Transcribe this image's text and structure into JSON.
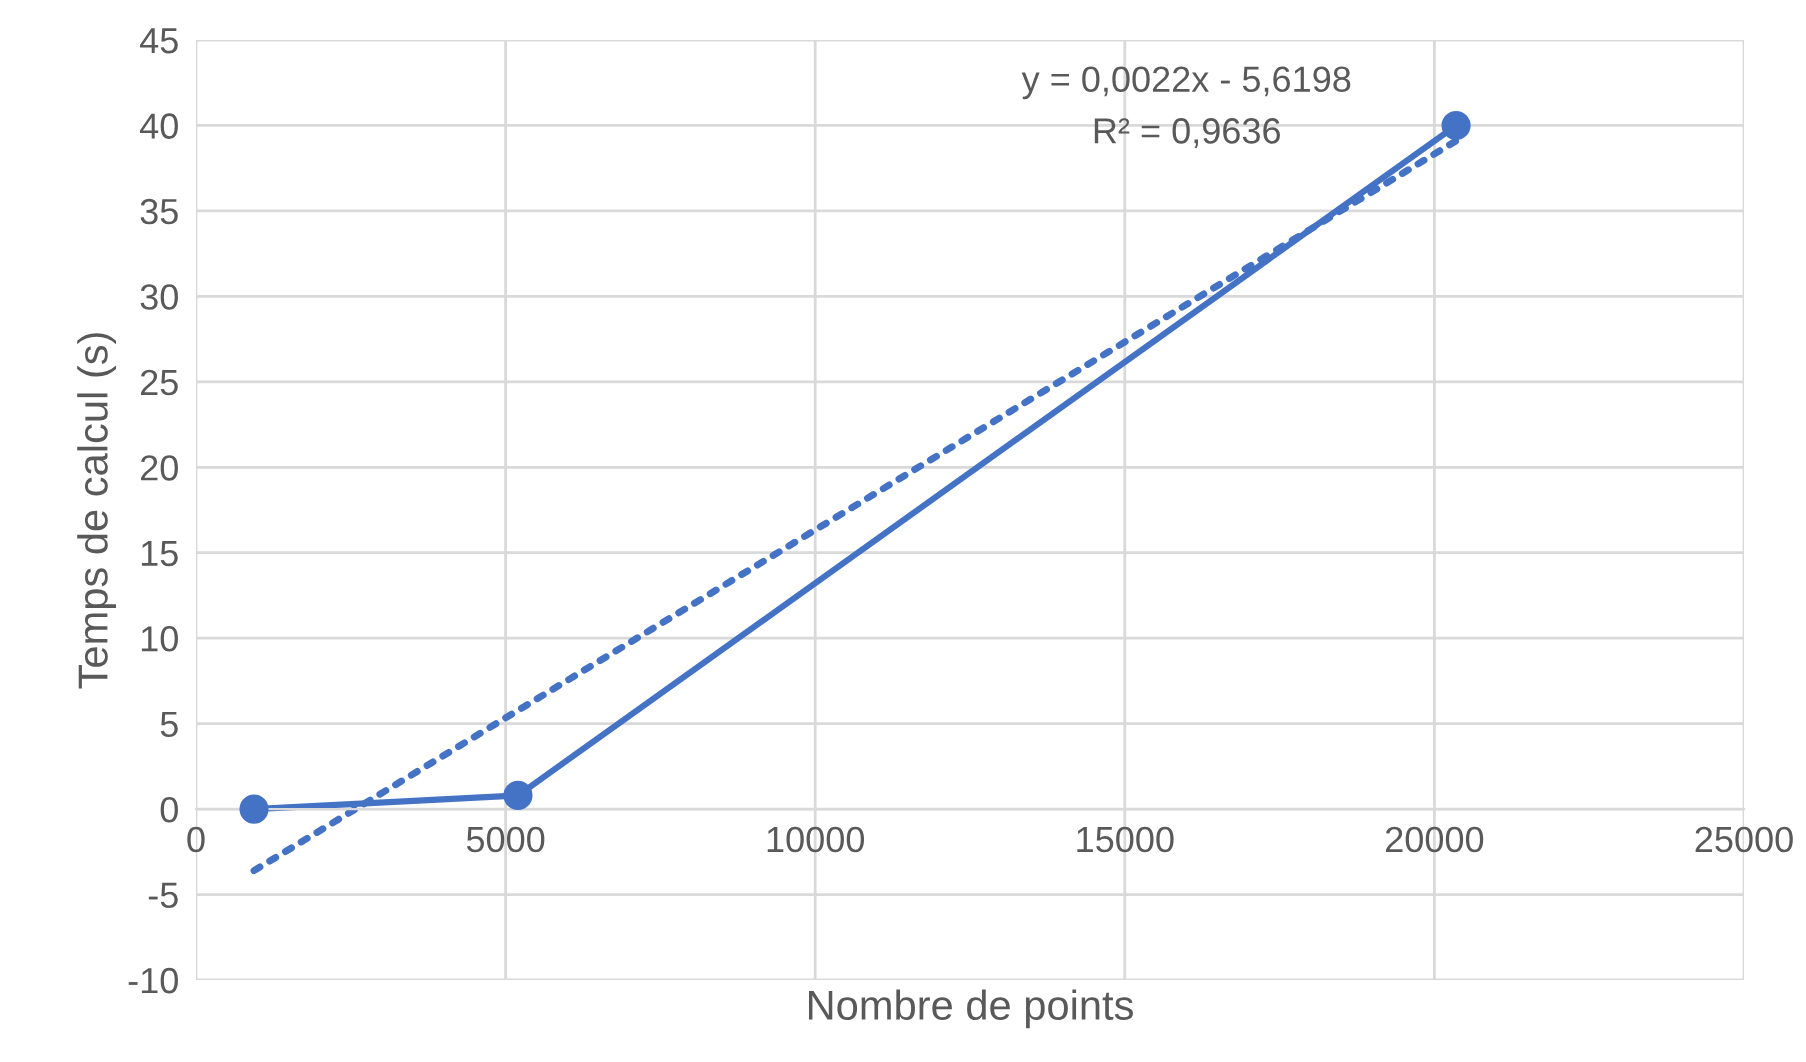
{
  "chart_data": {
    "type": "line",
    "xlabel": "Nombre de points",
    "ylabel": "Temps de calcul (s)",
    "series": [
      {
        "color": "#4472c4",
        "x": [
          937,
          5200,
          20350
        ],
        "values": [
          0,
          0.8,
          40
        ],
        "marker": "circle",
        "line_style": "solid"
      },
      {
        "color": "#4472c4",
        "x": [
          937,
          20350
        ],
        "values": [
          -3.6,
          39.1
        ],
        "marker": "none",
        "line_style": "dotted"
      }
    ],
    "annotations": [
      "y = 0,0022x - 5,6198",
      "R² = 0,9636"
    ],
    "xlim": [
      0,
      25000
    ],
    "xticks": [
      0,
      5000,
      10000,
      15000,
      20000,
      25000
    ],
    "ylim": [
      -10,
      45
    ],
    "yticks": [
      -10,
      -5,
      0,
      5,
      10,
      15,
      20,
      25,
      30,
      35,
      40,
      45
    ],
    "grid": true,
    "legend": false
  }
}
